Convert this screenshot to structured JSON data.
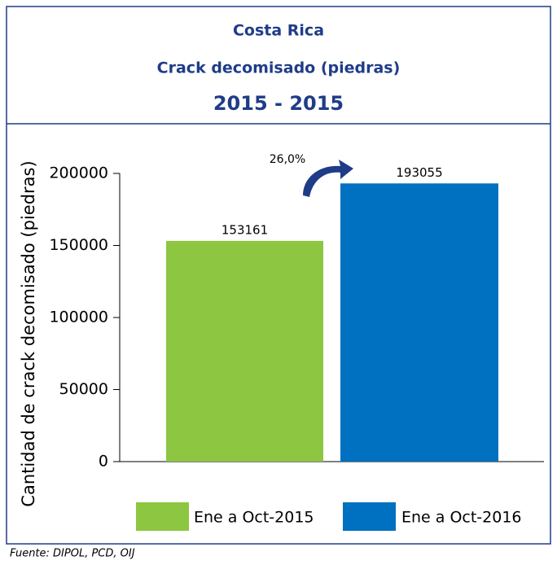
{
  "chart_data": {
    "type": "bar",
    "title": "Costa Rica",
    "subtitle": "Crack decomisado (piedras)",
    "period": "2015 - 2015",
    "y_label": "Cantidad de crack decomisado (piedras)",
    "series": [
      {
        "name": "Ene a Oct-2015",
        "color": "#8dc641",
        "values": [
          153161
        ]
      },
      {
        "name": "Ene a Oct-2016",
        "color": "#0070c0",
        "values": [
          193055
        ]
      }
    ],
    "annotation": "26,0%",
    "ylim": [
      0,
      200000
    ],
    "yticks": [
      0,
      50000,
      100000,
      150000,
      200000
    ],
    "source": "Fuente: DIPOL, PCD, OIJ"
  }
}
